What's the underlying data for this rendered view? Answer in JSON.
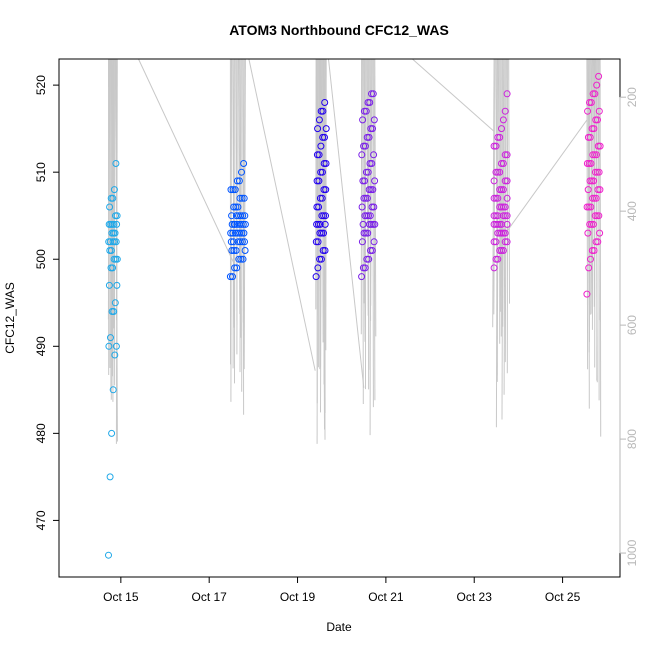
{
  "chart_data": {
    "type": "scatter",
    "title": "ATOM3 Northbound CFC12_WAS",
    "xlabel": "Date",
    "ylabel": "CFC12_WAS",
    "xlim_days": [
      13.6,
      26.3
    ],
    "ylim": [
      463.5,
      523
    ],
    "x_ticks": [
      {
        "day": 15,
        "label": "Oct 15"
      },
      {
        "day": 17,
        "label": "Oct 17"
      },
      {
        "day": 19,
        "label": "Oct 19"
      },
      {
        "day": 21,
        "label": "Oct 21"
      },
      {
        "day": 23,
        "label": "Oct 23"
      },
      {
        "day": 25,
        "label": "Oct 25"
      }
    ],
    "y_ticks": [
      470,
      480,
      490,
      500,
      510,
      520
    ],
    "secondary_axis": {
      "label": "",
      "note": "right axis, light grey, inverted (pressure-like)",
      "lim": [
        1042,
        133
      ],
      "ticks": [
        200,
        400,
        600,
        800,
        1000
      ]
    },
    "color_scale": [
      "#1fa8e8",
      "#0055ff",
      "#2200ee",
      "#7a1fe8",
      "#cc22dd",
      "#ee22cc"
    ],
    "flights": [
      {
        "name": "Oct 14-15 flight",
        "x_start": 14.72,
        "x_end": 14.92,
        "color": "#1fa8e8",
        "values": [
          466,
          475,
          480,
          485,
          489,
          490,
          490,
          491,
          494,
          494,
          495,
          497,
          497,
          499,
          499,
          500,
          500,
          500,
          501,
          501,
          502,
          502,
          502,
          502,
          502,
          503,
          503,
          503,
          504,
          504,
          504,
          504,
          504,
          505,
          505,
          506,
          507,
          507,
          508,
          511
        ]
      },
      {
        "name": "Oct 17 flight",
        "x_start": 17.48,
        "x_end": 17.82,
        "color": "#0055ff",
        "values": [
          498,
          498,
          499,
          499,
          500,
          500,
          500,
          501,
          501,
          501,
          501,
          502,
          502,
          502,
          502,
          502,
          502,
          503,
          503,
          503,
          503,
          503,
          503,
          503,
          504,
          504,
          504,
          504,
          504,
          504,
          504,
          504,
          505,
          505,
          505,
          505,
          505,
          505,
          506,
          506,
          506,
          507,
          507,
          507,
          508,
          508,
          508,
          509,
          509,
          510,
          511
        ]
      },
      {
        "name": "Oct 19 flight",
        "x_start": 19.42,
        "x_end": 19.65,
        "color": "#2200ee",
        "values": [
          498,
          499,
          500,
          500,
          501,
          501,
          502,
          502,
          503,
          503,
          503,
          504,
          504,
          504,
          504,
          505,
          505,
          505,
          506,
          506,
          507,
          507,
          508,
          508,
          509,
          509,
          510,
          510,
          511,
          511,
          512,
          512,
          513,
          514,
          514,
          515,
          515,
          516,
          517,
          517,
          518
        ]
      },
      {
        "name": "Oct 20-21 flight",
        "x_start": 20.45,
        "x_end": 20.75,
        "color": "#7a1fe8",
        "values": [
          498,
          499,
          499,
          500,
          500,
          501,
          501,
          502,
          502,
          503,
          503,
          503,
          504,
          504,
          504,
          504,
          504,
          505,
          505,
          505,
          505,
          506,
          506,
          506,
          507,
          507,
          507,
          508,
          508,
          508,
          509,
          509,
          509,
          510,
          510,
          511,
          511,
          512,
          512,
          513,
          513,
          514,
          514,
          515,
          515,
          516,
          516,
          517,
          517,
          518,
          518,
          519,
          519
        ]
      },
      {
        "name": "Oct 23 flight",
        "x_start": 23.45,
        "x_end": 23.78,
        "color": "#cc22dd",
        "values": [
          499,
          500,
          500,
          501,
          501,
          501,
          502,
          502,
          502,
          502,
          503,
          503,
          503,
          503,
          503,
          504,
          504,
          504,
          504,
          504,
          504,
          505,
          505,
          505,
          505,
          505,
          505,
          506,
          506,
          506,
          506,
          507,
          507,
          507,
          507,
          508,
          508,
          508,
          509,
          509,
          509,
          510,
          510,
          510,
          511,
          511,
          512,
          512,
          513,
          513,
          514,
          514,
          515,
          516,
          517,
          519
        ]
      },
      {
        "name": "Oct 25 flight",
        "x_start": 25.55,
        "x_end": 25.85,
        "color": "#ee22cc",
        "values": [
          496,
          499,
          500,
          501,
          501,
          502,
          502,
          503,
          503,
          504,
          504,
          504,
          505,
          505,
          505,
          506,
          506,
          506,
          507,
          507,
          507,
          508,
          508,
          508,
          509,
          509,
          509,
          510,
          510,
          510,
          511,
          511,
          511,
          512,
          512,
          512,
          513,
          513,
          514,
          514,
          515,
          515,
          516,
          516,
          517,
          517,
          518,
          518,
          519,
          519,
          520,
          521
        ]
      }
    ],
    "profile_line_color": "#c8c8c8",
    "profile_connectors": [
      {
        "from": [
          15.4,
          133
        ],
        "to": [
          17.55,
          490
        ]
      },
      {
        "from": [
          17.9,
          133
        ],
        "to": [
          19.4,
          680
        ]
      },
      {
        "from": [
          19.7,
          133
        ],
        "to": [
          20.5,
          710
        ]
      },
      {
        "from": [
          21.6,
          133
        ],
        "to": [
          23.45,
          260
        ]
      },
      {
        "from": [
          23.7,
          440
        ],
        "to": [
          25.55,
          240
        ]
      }
    ]
  }
}
